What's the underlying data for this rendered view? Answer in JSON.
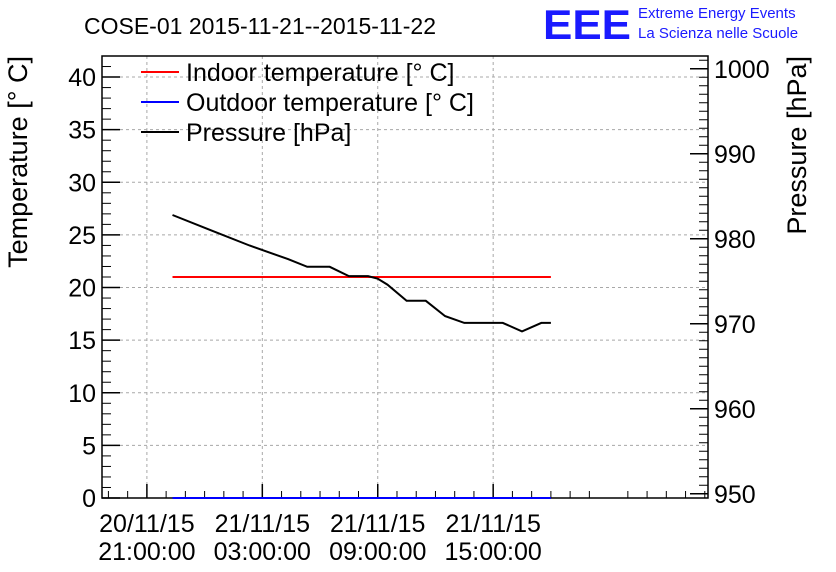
{
  "chart_data": {
    "type": "line",
    "title": "COSE-01 2015-11-21--2015-11-22",
    "ylabel": "Temperature [° C]",
    "y2label": "Pressure [hPa]",
    "ylim": [
      0,
      42
    ],
    "y2lim": [
      949.5,
      1001.5
    ],
    "xlim": [
      "2015-11-20 18:40:00",
      "2015-11-22 02:10:00"
    ],
    "y_ticks": [
      0,
      5,
      10,
      15,
      20,
      25,
      30,
      35,
      40
    ],
    "y2_ticks": [
      950,
      960,
      970,
      980,
      990,
      1000
    ],
    "x_ticks": [
      {
        "date": "20/11/15",
        "time": "21:00:00",
        "t": "2015-11-20 21:00:00"
      },
      {
        "date": "21/11/15",
        "time": "03:00:00",
        "t": "2015-11-21 03:00:00"
      },
      {
        "date": "21/11/15",
        "time": "09:00:00",
        "t": "2015-11-21 09:00:00"
      },
      {
        "date": "21/11/15",
        "time": "15:00:00",
        "t": "2015-11-21 15:00:00"
      }
    ],
    "grid": true,
    "legend_position": "top-left",
    "series": [
      {
        "name": "Indoor temperature [° C]",
        "color": "#ff0000",
        "axis": "left",
        "x": [
          "2015-11-20 22:20:00",
          "2015-11-21 18:00:00"
        ],
        "values": [
          21,
          21
        ]
      },
      {
        "name": "Outdoor temperature [° C]",
        "color": "#0000ff",
        "axis": "left",
        "x": [
          "2015-11-20 22:20:00",
          "2015-11-21 18:00:00"
        ],
        "values": [
          0,
          0
        ]
      },
      {
        "name": "Pressure [hPa]",
        "color": "#000000",
        "axis": "right",
        "x": [
          "2015-11-20 22:20:00",
          "2015-11-21 00:20:00",
          "2015-11-21 02:20:00",
          "2015-11-21 04:20:00",
          "2015-11-21 05:20:00",
          "2015-11-21 06:30:00",
          "2015-11-21 07:30:00",
          "2015-11-21 08:30:00",
          "2015-11-21 09:00:00",
          "2015-11-21 09:30:00",
          "2015-11-21 10:30:00",
          "2015-11-21 11:30:00",
          "2015-11-21 12:30:00",
          "2015-11-21 13:30:00",
          "2015-11-21 14:30:00",
          "2015-11-21 15:30:00",
          "2015-11-21 16:30:00",
          "2015-11-21 17:30:00",
          "2015-11-21 18:00:00"
        ],
        "values": [
          982.8,
          981.0,
          979.2,
          977.6,
          976.7,
          976.7,
          975.6,
          975.6,
          975.3,
          974.6,
          972.7,
          972.7,
          970.9,
          970.1,
          970.1,
          970.1,
          969.1,
          970.1,
          970.1
        ]
      }
    ]
  },
  "branding": {
    "logo_text": "EEE",
    "line1": "Extreme Energy Events",
    "line2": "La Scienza nelle Scuole"
  }
}
